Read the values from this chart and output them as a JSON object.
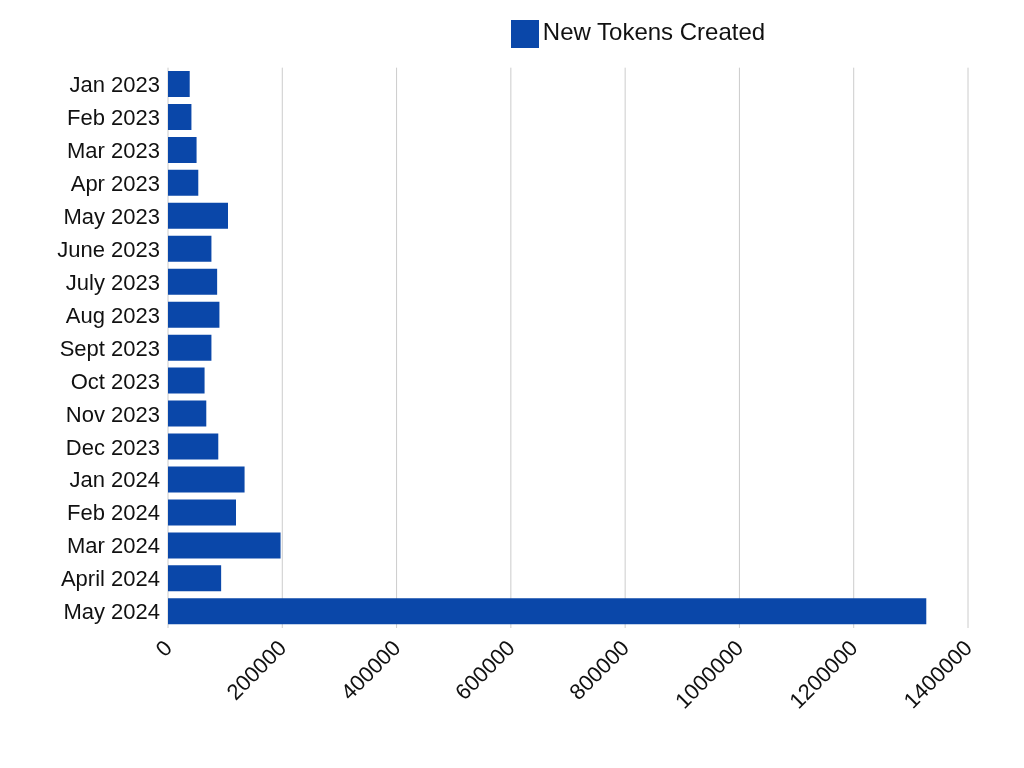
{
  "chart_data": {
    "type": "bar",
    "orientation": "horizontal",
    "categories": [
      "Jan 2023",
      "Feb 2023",
      "Mar 2023",
      "Apr 2023",
      "May 2023",
      "June 2023",
      "July 2023",
      "Aug 2023",
      "Sept 2023",
      "Oct 2023",
      "Nov 2023",
      "Dec 2023",
      "Jan 2024",
      "Feb 2024",
      "Mar 2024",
      "April 2024",
      "May 2024"
    ],
    "series": [
      {
        "name": "New Tokens Created",
        "color": "#0a47a9",
        "values": [
          38000,
          41000,
          50000,
          53000,
          105000,
          76000,
          86000,
          90000,
          76000,
          64000,
          67000,
          88000,
          134000,
          119000,
          197000,
          93000,
          1327000
        ]
      }
    ],
    "xlim": [
      0,
      1400000
    ],
    "xticks": [
      0,
      200000,
      400000,
      600000,
      800000,
      1000000,
      1200000,
      1400000
    ],
    "grid": "x",
    "legend": "top"
  }
}
